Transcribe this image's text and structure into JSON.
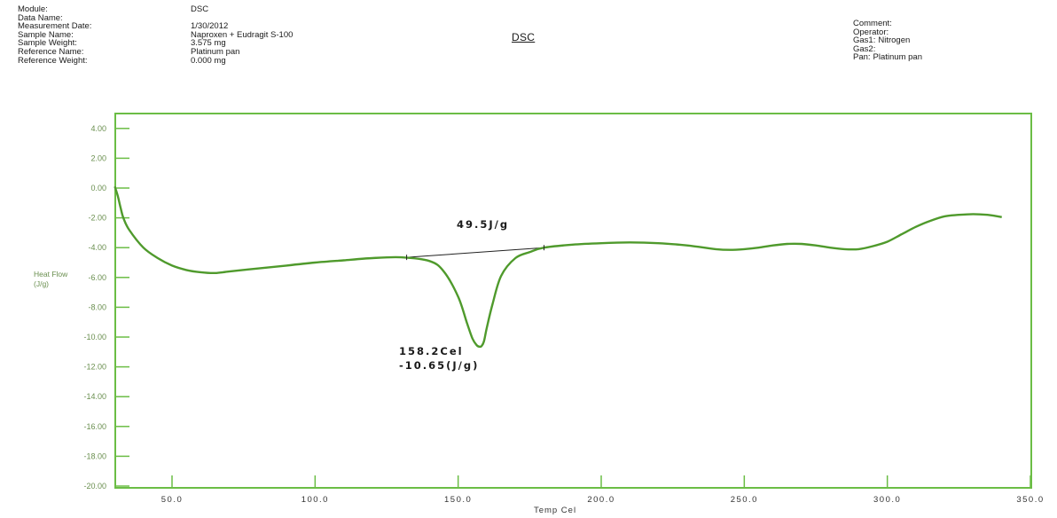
{
  "header": {
    "left_rows": [
      {
        "label": "Module:",
        "value": "DSC"
      },
      {
        "label": "Data Name:",
        "value": ""
      },
      {
        "label": "Measurement Date:",
        "value": "1/30/2012"
      },
      {
        "label": "Sample Name:",
        "value": "Naproxen + Eudragit S-100"
      },
      {
        "label": "Sample Weight:",
        "value": "3.575 mg"
      },
      {
        "label": "Reference Name:",
        "value": "Platinum pan"
      },
      {
        "label": "Reference Weight:",
        "value": "0.000 mg"
      }
    ],
    "title": "DSC",
    "right_rows": [
      {
        "label": "Comment:",
        "value": ""
      },
      {
        "label": "Operator:",
        "value": ""
      },
      {
        "label": "Gas1:",
        "value": "Nitrogen"
      },
      {
        "label": "Gas2:",
        "value": ""
      },
      {
        "label": "Pan:",
        "value": "Platinum pan"
      }
    ]
  },
  "colors": {
    "curve": "#4f9a2c",
    "frame": "#6bbd45",
    "tick_text": "#6a8f4f",
    "baseline": "#222222"
  },
  "chart_data": {
    "type": "line",
    "xlabel": "Temp Cel",
    "ylabel": "Heat Flow (J/g)",
    "xlim": [
      30,
      350
    ],
    "ylim": [
      -20,
      5
    ],
    "x_ticks": [
      50,
      100,
      150,
      200,
      250,
      300,
      350
    ],
    "x_tick_labels": [
      "50.0",
      "100.0",
      "150.0",
      "200.0",
      "250.0",
      "300.0",
      "350.0"
    ],
    "y_ticks": [
      4,
      2,
      0,
      -2,
      -4,
      -6,
      -8,
      -10,
      -12,
      -14,
      -16,
      -18,
      -20
    ],
    "y_tick_labels": [
      "4.00",
      "2.00",
      "0.00",
      "-2.00",
      "-4.00",
      "-6.00",
      "-8.00",
      "-10.00",
      "-12.00",
      "-14.00",
      "-16.00",
      "-18.00",
      "-20.00"
    ],
    "grid": false,
    "series": [
      {
        "x": [
          30,
          31,
          32,
          33,
          35,
          40,
          45,
          50,
          55,
          60,
          65,
          70,
          80,
          90,
          100,
          110,
          120,
          130,
          140,
          145,
          150,
          153,
          155,
          156.5,
          157.5,
          158.2,
          159,
          160,
          162,
          165,
          170,
          175,
          180,
          190,
          200,
          210,
          220,
          230,
          240,
          245,
          250,
          255,
          260,
          265,
          270,
          275,
          280,
          285,
          290,
          295,
          300,
          305,
          310,
          315,
          320,
          325,
          330,
          335,
          340
        ],
        "y": [
          0.1,
          -0.5,
          -1.3,
          -2.0,
          -2.8,
          -4.0,
          -4.7,
          -5.2,
          -5.5,
          -5.65,
          -5.7,
          -5.6,
          -5.4,
          -5.2,
          -5.0,
          -4.85,
          -4.7,
          -4.65,
          -4.9,
          -5.6,
          -7.3,
          -9.0,
          -10.1,
          -10.55,
          -10.65,
          -10.6,
          -10.3,
          -9.4,
          -7.8,
          -5.9,
          -4.7,
          -4.3,
          -4.0,
          -3.8,
          -3.7,
          -3.65,
          -3.7,
          -3.85,
          -4.1,
          -4.15,
          -4.1,
          -4.0,
          -3.85,
          -3.75,
          -3.75,
          -3.85,
          -4.0,
          -4.1,
          -4.1,
          -3.9,
          -3.6,
          -3.1,
          -2.6,
          -2.2,
          -1.9,
          -1.8,
          -1.75,
          -1.8,
          -1.95
        ]
      }
    ],
    "baseline": {
      "x": [
        132,
        180
      ],
      "y": [
        -4.65,
        -4.0
      ]
    },
    "annotations": {
      "enthalpy": "49.5J/g",
      "peak_temp": "158.2Cel",
      "peak_value": "-10.65(J/g)"
    }
  }
}
